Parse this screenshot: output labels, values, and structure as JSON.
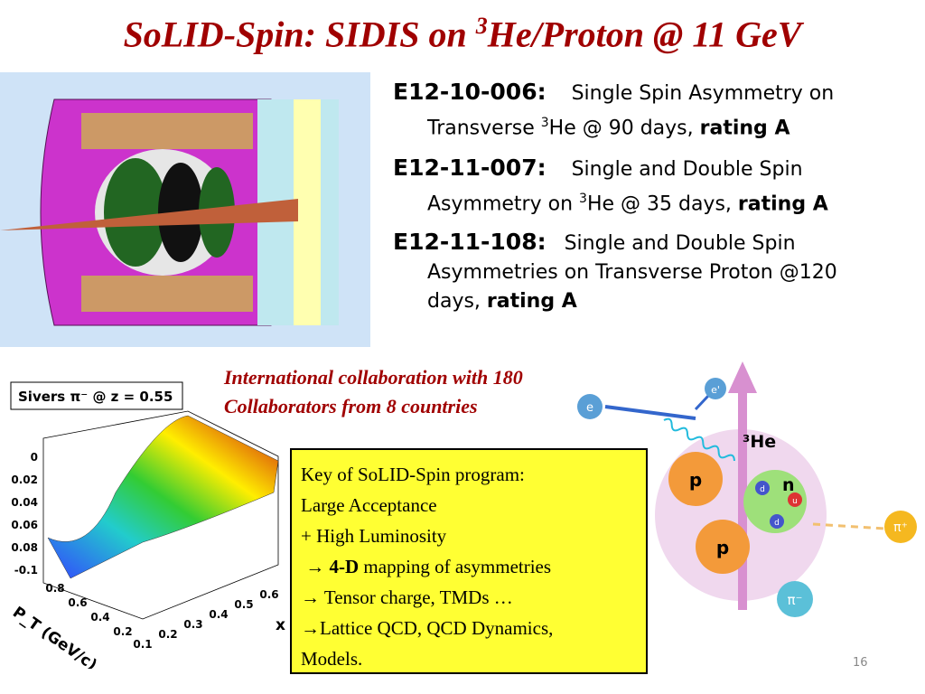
{
  "title": {
    "before": "SoLID-Spin: SIDIS on ",
    "sup": "3",
    "after": "He/Proton @ 11 GeV"
  },
  "experiments": [
    {
      "id": "E12-10-006:",
      "desc": "Single Spin Asymmetry on",
      "line2": "Transverse ",
      "sup": "3",
      "line2b": "He @ 90 days, ",
      "rating": "rating A"
    },
    {
      "id": "E12-11-007:",
      "desc": "Single and Double Spin",
      "line2": "Asymmetry on ",
      "sup": "3",
      "line2b": "He @ 35 days, ",
      "rating": "rating A"
    },
    {
      "id": "E12-11-108:",
      "desc": "Single and Double Spin",
      "line2": "Asymmetries on Transverse Proton @120",
      "line3": "days, ",
      "rating": "rating A"
    }
  ],
  "collaboration": [
    "International collaboration with 180",
    "Collaborators from 8 countries"
  ],
  "key_box": {
    "lines": [
      "Key of SoLID-Spin program:",
      "Large Acceptance",
      "+ High Luminosity"
    ],
    "mapping": {
      "arrow": " → ",
      "bold": "4-D",
      "rest": " mapping of asymmetries"
    },
    "tail": [
      "→ Tensor charge, TMDs …",
      "→Lattice QCD, QCD Dynamics,",
      "Models."
    ]
  },
  "plot": {
    "title": "Sivers π⁻ @ z = 0.55",
    "z_ticks": [
      "0",
      "0.02",
      "0.04",
      "0.06",
      "0.08",
      "-0.1"
    ],
    "x_ticks": [
      "0.1",
      "0.2",
      "0.3",
      "0.4",
      "0.5",
      "0.6"
    ],
    "x_label": "x",
    "pt_ticks": [
      "0.2",
      "0.4",
      "0.6",
      "0.8"
    ],
    "pt_label": "P_T (GeV/c)"
  },
  "diagram": {
    "e": "e",
    "e_out": "e'",
    "he": "³He",
    "p1": "p",
    "p2": "p",
    "n": "n",
    "d1": "d",
    "u": "u",
    "d2": "d",
    "pi_plus": "π⁺",
    "pi_minus": "π⁻"
  },
  "page_number": "16"
}
